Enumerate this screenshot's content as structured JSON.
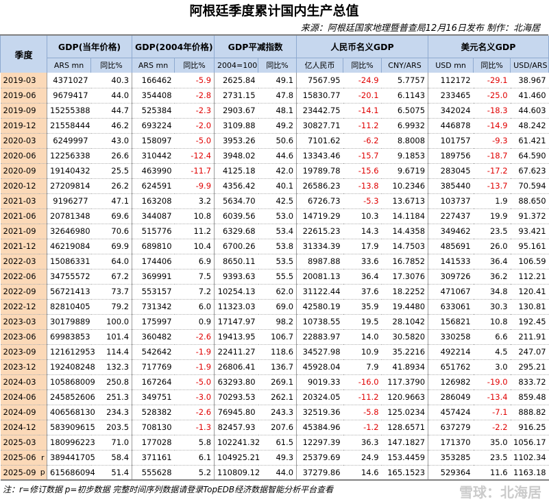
{
  "header": {
    "title": "阿根廷季度累计国内生产总值",
    "source": "来源：阿根廷国家地理暨普查局12月16日发布 制作：北海居"
  },
  "table": {
    "period_header": "季度",
    "groups": [
      {
        "title": "GDP(当年价格)",
        "columns": [
          "ARS mn",
          "同比%"
        ]
      },
      {
        "title": "GDP(2004年价格)",
        "columns": [
          "ARS mn",
          "同比%"
        ]
      },
      {
        "title": "GDP平减指数",
        "columns": [
          "2004=100",
          "同比%"
        ]
      },
      {
        "title": "人民币名义GDP",
        "columns": [
          "亿人民币",
          "同比%",
          "CNY/ARS"
        ]
      },
      {
        "title": "美元名义GDP",
        "columns": [
          "USD mn",
          "同比%",
          "USD/ARS"
        ]
      }
    ],
    "rows": [
      {
        "period": "2019-03",
        "values": [
          "4371027",
          "40.3",
          "166462",
          "-5.9",
          "2625.84",
          "49.1",
          "7567.95",
          "-24.9",
          "5.7757",
          "112172",
          "-29.1",
          "38.967"
        ]
      },
      {
        "period": "2019-06",
        "values": [
          "9679417",
          "44.0",
          "354408",
          "-2.8",
          "2731.15",
          "47.8",
          "15830.77",
          "-20.1",
          "6.1143",
          "233465",
          "-25.0",
          "41.460"
        ]
      },
      {
        "period": "2019-09",
        "values": [
          "15255388",
          "44.7",
          "525384",
          "-2.3",
          "2903.67",
          "48.1",
          "23442.75",
          "-14.1",
          "6.5075",
          "342024",
          "-18.3",
          "44.603"
        ]
      },
      {
        "period": "2019-12",
        "values": [
          "21558444",
          "46.2",
          "693224",
          "-2.0",
          "3109.88",
          "49.2",
          "30827.71",
          "-11.2",
          "6.9932",
          "446878",
          "-14.9",
          "48.242"
        ]
      },
      {
        "period": "2020-03",
        "values": [
          "6249997",
          "43.0",
          "158097",
          "-5.0",
          "3953.26",
          "50.6",
          "7101.62",
          "-6.2",
          "8.8008",
          "101757",
          "-9.3",
          "61.421"
        ]
      },
      {
        "period": "2020-06",
        "values": [
          "12256338",
          "26.6",
          "310442",
          "-12.4",
          "3948.02",
          "44.6",
          "13343.46",
          "-15.7",
          "9.1853",
          "189756",
          "-18.7",
          "64.590"
        ]
      },
      {
        "period": "2020-09",
        "values": [
          "19140432",
          "25.5",
          "463990",
          "-11.7",
          "4125.18",
          "42.0",
          "19789.78",
          "-15.6",
          "9.6719",
          "283045",
          "-17.2",
          "67.623"
        ]
      },
      {
        "period": "2020-12",
        "values": [
          "27209814",
          "26.2",
          "624591",
          "-9.9",
          "4356.42",
          "40.1",
          "26586.23",
          "-13.8",
          "10.2346",
          "385440",
          "-13.7",
          "70.594"
        ]
      },
      {
        "period": "2021-03",
        "values": [
          "9196277",
          "47.1",
          "163208",
          "3.2",
          "5634.70",
          "42.5",
          "6726.73",
          "-5.3",
          "13.6713",
          "103737",
          "1.9",
          "88.650"
        ]
      },
      {
        "period": "2021-06",
        "values": [
          "20781348",
          "69.6",
          "344087",
          "10.8",
          "6039.56",
          "53.0",
          "14719.29",
          "10.3",
          "14.1184",
          "227437",
          "19.9",
          "91.372"
        ]
      },
      {
        "period": "2021-09",
        "values": [
          "32646980",
          "70.6",
          "515776",
          "11.2",
          "6329.68",
          "53.4",
          "22615.23",
          "14.3",
          "14.4358",
          "349462",
          "23.5",
          "93.421"
        ]
      },
      {
        "period": "2021-12",
        "values": [
          "46219084",
          "69.9",
          "689810",
          "10.4",
          "6700.26",
          "53.8",
          "31334.39",
          "17.9",
          "14.7503",
          "485691",
          "26.0",
          "95.161"
        ]
      },
      {
        "period": "2022-03",
        "values": [
          "15086331",
          "64.0",
          "174406",
          "6.9",
          "8650.11",
          "53.5",
          "8987.88",
          "33.6",
          "16.7852",
          "141533",
          "36.4",
          "106.59"
        ]
      },
      {
        "period": "2022-06",
        "values": [
          "34755572",
          "67.2",
          "369991",
          "7.5",
          "9393.63",
          "55.5",
          "20081.13",
          "36.4",
          "17.3076",
          "309726",
          "36.2",
          "112.21"
        ]
      },
      {
        "period": "2022-09",
        "values": [
          "56721413",
          "73.7",
          "553157",
          "7.2",
          "10254.13",
          "62.0",
          "31122.44",
          "37.6",
          "18.2252",
          "471067",
          "34.8",
          "120.41"
        ]
      },
      {
        "period": "2022-12",
        "values": [
          "82810405",
          "79.2",
          "731342",
          "6.0",
          "11323.03",
          "69.0",
          "42580.19",
          "35.9",
          "19.4480",
          "633061",
          "30.3",
          "130.81"
        ]
      },
      {
        "period": "2023-03",
        "values": [
          "30179889",
          "100.0",
          "175997",
          "0.9",
          "17147.97",
          "98.2",
          "10738.55",
          "19.5",
          "28.1042",
          "156821",
          "10.8",
          "192.45"
        ]
      },
      {
        "period": "2023-06",
        "values": [
          "69983853",
          "101.4",
          "360482",
          "-2.6",
          "19413.95",
          "106.7",
          "22883.97",
          "14.0",
          "30.5820",
          "330258",
          "6.6",
          "211.91"
        ]
      },
      {
        "period": "2023-09",
        "values": [
          "121612953",
          "114.4",
          "542642",
          "-1.9",
          "22411.27",
          "118.6",
          "34527.98",
          "10.9",
          "35.2216",
          "492214",
          "4.5",
          "247.07"
        ]
      },
      {
        "period": "2023-12",
        "values": [
          "192408248",
          "132.3",
          "717769",
          "-1.9",
          "26806.41",
          "136.7",
          "45928.04",
          "7.9",
          "41.8934",
          "651762",
          "3.0",
          "295.21"
        ]
      },
      {
        "period": "2024-03",
        "values": [
          "105868009",
          "250.8",
          "167264",
          "-5.0",
          "63293.80",
          "269.1",
          "9019.33",
          "-16.0",
          "117.3790",
          "126982",
          "-19.0",
          "833.72"
        ]
      },
      {
        "period": "2024-06",
        "values": [
          "245852606",
          "251.3",
          "349751",
          "-3.0",
          "70293.53",
          "262.1",
          "20324.05",
          "-11.2",
          "120.9663",
          "286049",
          "-13.4",
          "859.48"
        ]
      },
      {
        "period": "2024-09",
        "values": [
          "406568130",
          "234.3",
          "528382",
          "-2.6",
          "76945.80",
          "243.3",
          "32519.36",
          "-5.8",
          "125.0234",
          "457424",
          "-7.1",
          "888.82"
        ]
      },
      {
        "period": "2024-12",
        "values": [
          "583909615",
          "203.5",
          "708130",
          "-1.3",
          "82457.93",
          "207.6",
          "45384.96",
          "-1.2",
          "128.6571",
          "637279",
          "-2.2",
          "916.25"
        ]
      },
      {
        "period": "2025-03",
        "values": [
          "180996223",
          "71.0",
          "177028",
          "5.8",
          "102241.32",
          "61.5",
          "12297.39",
          "36.3",
          "147.1827",
          "171370",
          "35.0",
          "1056.17"
        ]
      },
      {
        "period": "2025-06",
        "flag": "r",
        "values": [
          "389441705",
          "58.4",
          "371161",
          "6.1",
          "104925.21",
          "49.3",
          "25379.69",
          "24.9",
          "153.4459",
          "353285",
          "23.5",
          "1102.34"
        ]
      },
      {
        "period": "2025-09",
        "flag": "p",
        "values": [
          "615686094",
          "51.4",
          "555628",
          "5.2",
          "110809.12",
          "44.0",
          "37279.86",
          "14.6",
          "165.1523",
          "529364",
          "11.6",
          "1163.18"
        ]
      }
    ]
  },
  "footnote": "注：r=修订数据 p=初步数据 完整时间序列数据请登录TopEDB经济数据智能分析平台查看",
  "watermark": "雪球：北海居"
}
